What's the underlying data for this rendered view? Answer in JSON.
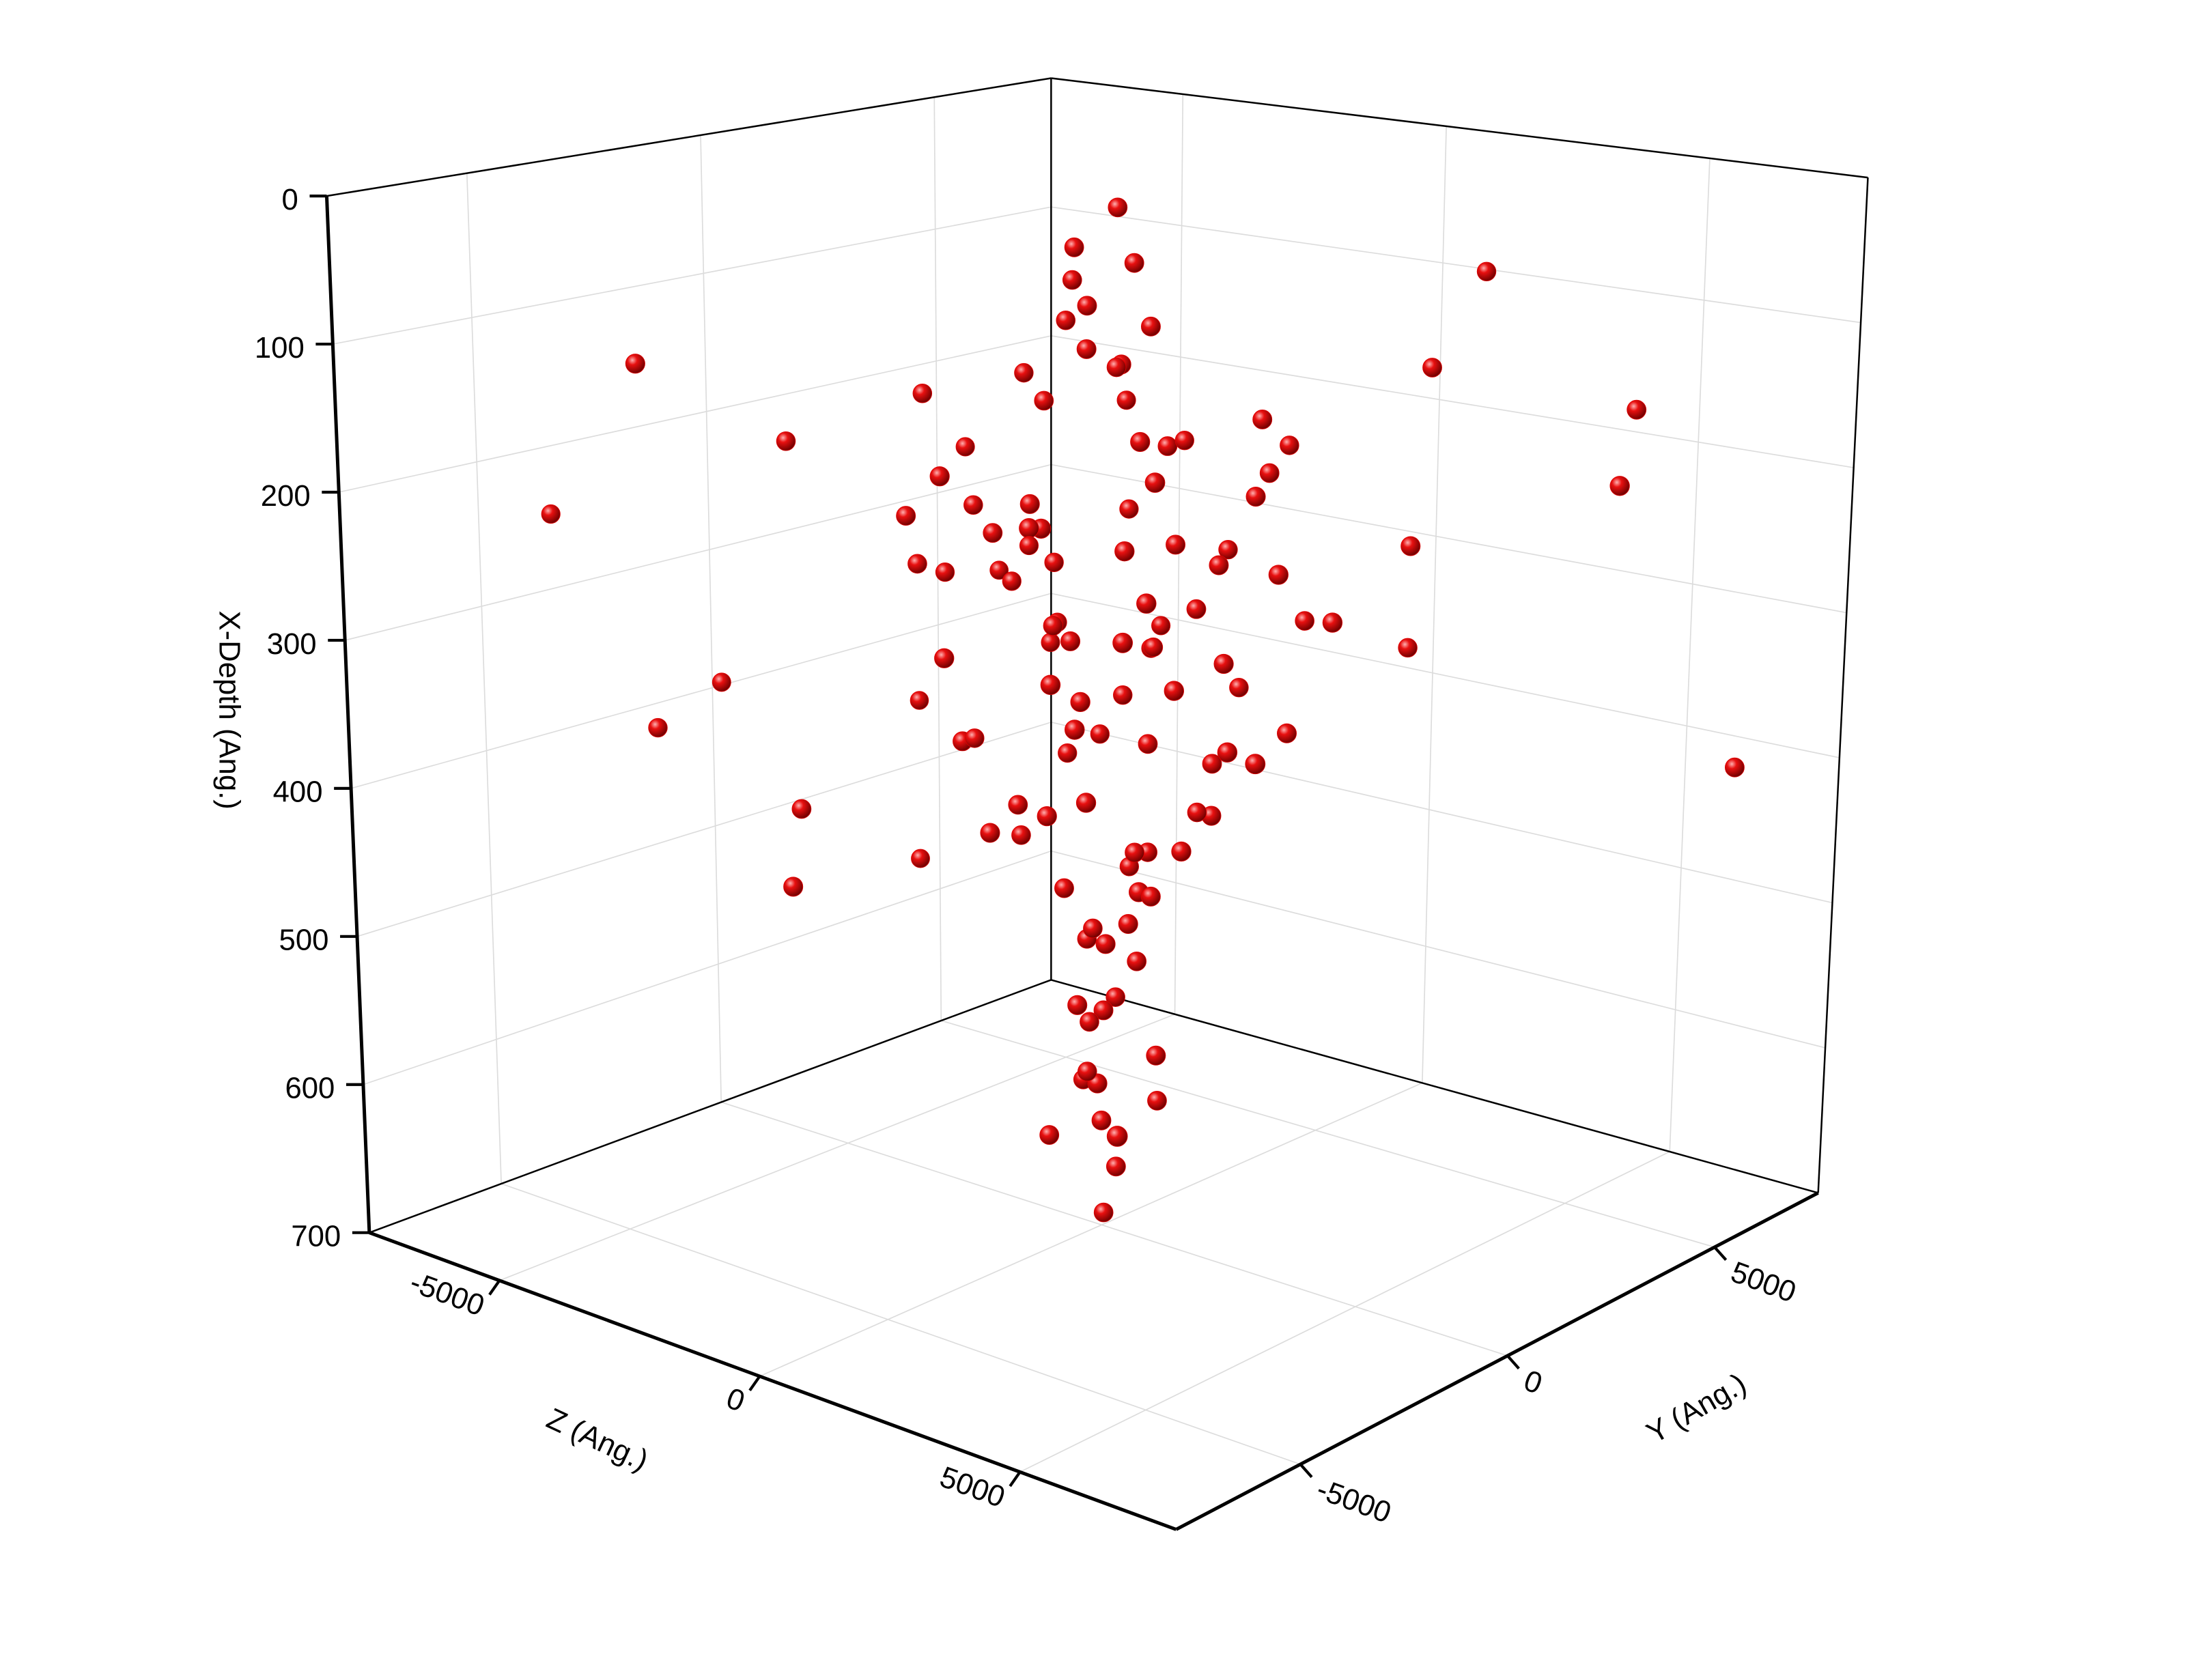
{
  "chart_data": {
    "type": "scatter3d",
    "xlabel": "X-Depth (Ang.)",
    "ylabel": "Y (Ang.)",
    "zlabel": "Z (Ang.)",
    "xlim": [
      0,
      700
    ],
    "xticks": [
      0,
      100,
      200,
      300,
      400,
      500,
      600,
      700
    ],
    "x_reversed": true,
    "ylim": [
      -8000,
      7500
    ],
    "yticks": [
      -5000,
      0,
      5000
    ],
    "zlim": [
      -7500,
      8000
    ],
    "zticks": [
      -5000,
      0,
      5000
    ],
    "grid": true,
    "series": [
      {
        "color": "#e00000",
        "x": [
          20,
          45,
          55,
          70,
          80,
          95,
          100,
          110,
          120,
          130,
          150,
          160,
          170,
          175,
          185,
          190,
          200,
          205,
          215,
          225,
          230,
          240,
          250,
          260,
          265,
          275,
          280,
          290,
          300,
          305,
          315,
          320,
          330,
          340,
          345,
          355,
          360,
          370,
          380,
          385,
          395,
          405,
          415,
          425,
          435,
          445,
          455,
          465,
          475,
          485,
          500,
          520,
          540,
          560,
          580,
          600,
          620,
          640,
          660,
          700,
          240,
          370,
          380,
          400,
          160,
          195,
          405,
          540,
          110,
          75,
          180,
          300,
          240,
          350,
          420,
          130,
          500,
          280,
          330,
          460,
          150,
          180,
          210,
          240,
          270,
          300,
          330,
          360,
          390,
          420,
          450,
          470,
          490,
          510,
          530,
          550,
          570,
          590,
          610,
          630,
          200,
          220,
          260,
          290,
          310,
          335,
          365,
          395,
          405,
          430,
          140,
          165,
          190,
          210,
          235,
          255,
          270,
          285,
          310,
          325
        ],
        "y": [
          400,
          -200,
          300,
          100,
          -500,
          200,
          300,
          -400,
          -100,
          600,
          -1000,
          1500,
          2200,
          -1800,
          -2600,
          2800,
          500,
          900,
          -2000,
          -600,
          -1200,
          1800,
          600,
          -1500,
          2500,
          -2300,
          -200,
          1100,
          -2900,
          2600,
          900,
          -800,
          1600,
          -2100,
          1900,
          2300,
          -300,
          -1700,
          600,
          -500,
          -1500,
          1000,
          400,
          -1800,
          1600,
          -400,
          -900,
          1300,
          200,
          1700,
          -600,
          500,
          -900,
          800,
          200,
          -300,
          700,
          -500,
          100,
          400,
          -4000,
          -1500,
          -3500,
          1500,
          5500,
          4000,
          6500,
          -5000,
          -5500,
          5000,
          -2500,
          1800,
          2500,
          -1200,
          -3000,
          3500,
          800,
          1000,
          4000,
          -3800,
          -300,
          800,
          -1200,
          400,
          600,
          -900,
          -1500,
          1200,
          1000,
          -700,
          300,
          -600,
          -200,
          400,
          700,
          -300,
          200,
          -800,
          500,
          0,
          1900,
          -2200,
          -1300,
          700,
          -2400,
          2000,
          1400,
          1500,
          -1800,
          -400,
          300,
          -500,
          2100,
          -2500,
          -1100,
          900,
          1200,
          -1400,
          200,
          2400
        ],
        "z": [
          0,
          -300,
          400,
          -600,
          200,
          800,
          -900,
          100,
          500,
          -200,
          -2500,
          1800,
          -1400,
          2600,
          -800,
          1200,
          -3000,
          2200,
          600,
          -1900,
          1500,
          -1000,
          2900,
          -2200,
          300,
          2400,
          -2800,
          900,
          -500,
          1700,
          -1600,
          2100,
          -400,
          1300,
          -2600,
          700,
          2700,
          -1200,
          400,
          -2000,
          1000,
          -1500,
          1800,
          -600,
          500,
          -1200,
          1500,
          -200,
          800,
          -900,
          600,
          -700,
          300,
          -400,
          900,
          -100,
          500,
          -600,
          200,
          -300,
          -7000,
          -6000,
          -5500,
          -4800,
          5500,
          6500,
          6800,
          4500,
          -4000,
          3000,
          -3800,
          -3500,
          3800,
          4000,
          -3200,
          3300,
          -4200,
          3600,
          2500,
          -2700,
          -800,
          600,
          -300,
          1100,
          -1400,
          200,
          900,
          -600,
          1300,
          -1000,
          400,
          -200,
          700,
          -500,
          100,
          300,
          -400,
          600,
          -700,
          0,
          1600,
          -1800,
          2000,
          -2300,
          1100,
          -700,
          2400,
          -1300,
          500,
          1900,
          -1700,
          1200,
          -200,
          800,
          -1100,
          1500,
          -2400,
          300,
          2200,
          -900
        ]
      }
    ]
  }
}
